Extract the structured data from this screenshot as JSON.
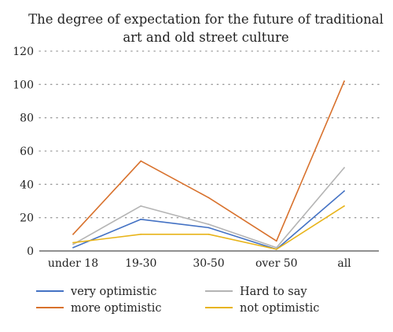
{
  "chart_data": {
    "type": "line",
    "title_lines": [
      "The degree of expectation for the future of traditional",
      "art and old street culture"
    ],
    "categories": [
      "under 18",
      "19-30",
      "30-50",
      "over 50",
      "all"
    ],
    "ylim": [
      0,
      120
    ],
    "yticks": [
      "0",
      "20",
      "40",
      "60",
      "80",
      "100",
      "120"
    ],
    "xlabel": "",
    "ylabel": "",
    "grid": "horizontal-dotted",
    "legend_position": "bottom",
    "series": [
      {
        "name": "very optimistic",
        "color": "#4472c4",
        "values": [
          2,
          19,
          14,
          1,
          36
        ]
      },
      {
        "name": "more optimistic",
        "color": "#d8712c",
        "values": [
          10,
          54,
          32,
          6,
          102
        ]
      },
      {
        "name": "Hard to say",
        "color": "#b4b4b4",
        "values": [
          4,
          27,
          16,
          2,
          50
        ]
      },
      {
        "name": "not optimistic",
        "color": "#e8b41a",
        "values": [
          5,
          10,
          10,
          1,
          27
        ]
      }
    ],
    "legend_order": [
      0,
      2,
      1,
      3
    ]
  }
}
